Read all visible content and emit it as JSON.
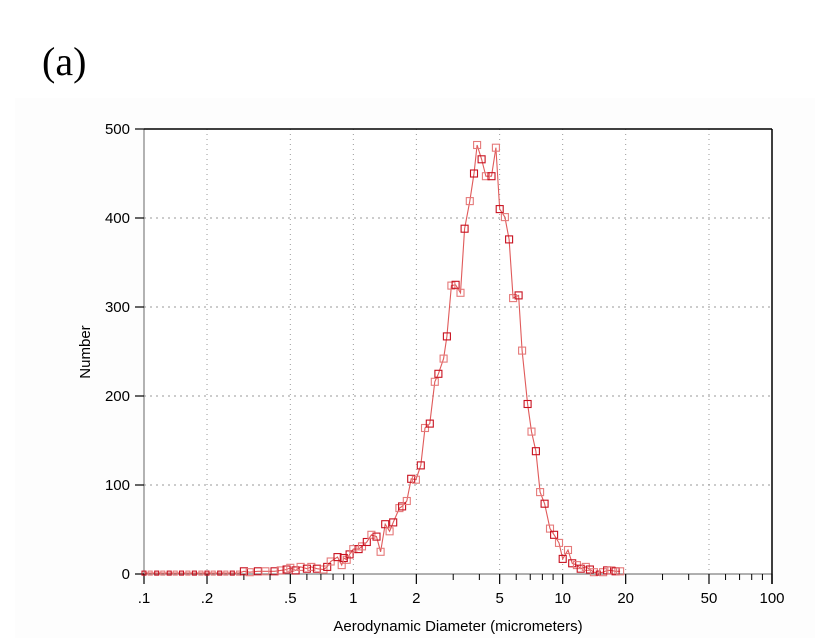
{
  "panel_label": "(a)",
  "colors": {
    "line": "#e05a5a",
    "marker_dark": "#c8101e",
    "marker_light": "#e57a7a",
    "grid": "#999999",
    "axis_left_bottom": "#808080",
    "axis_top_right": "#000000"
  },
  "chart_data": {
    "type": "line",
    "title": "",
    "xlabel": "Aerodynamic Diameter (micrometers)",
    "ylabel": "Number",
    "xscale": "log",
    "xlim": [
      0.1,
      100
    ],
    "ylim": [
      0,
      500
    ],
    "x_ticks": [
      {
        "value": 0.1,
        "label": ".1"
      },
      {
        "value": 0.2,
        "label": ".2"
      },
      {
        "value": 0.5,
        "label": ".5"
      },
      {
        "value": 1,
        "label": "1"
      },
      {
        "value": 2,
        "label": "2"
      },
      {
        "value": 5,
        "label": "5"
      },
      {
        "value": 10,
        "label": "10"
      },
      {
        "value": 20,
        "label": "20"
      },
      {
        "value": 50,
        "label": "50"
      },
      {
        "value": 100,
        "label": "100"
      }
    ],
    "y_ticks": [
      {
        "value": 0,
        "label": "0"
      },
      {
        "value": 100,
        "label": "100"
      },
      {
        "value": 200,
        "label": "200"
      },
      {
        "value": 300,
        "label": "300"
      },
      {
        "value": 400,
        "label": "400"
      },
      {
        "value": 500,
        "label": "500"
      }
    ],
    "grid": true,
    "legend": null,
    "series": [
      {
        "name": "Number",
        "x": [
          0.1,
          0.107,
          0.115,
          0.123,
          0.132,
          0.141,
          0.151,
          0.162,
          0.174,
          0.187,
          0.2,
          0.214,
          0.23,
          0.246,
          0.264,
          0.283,
          0.3,
          0.32,
          0.35,
          0.38,
          0.42,
          0.45,
          0.48,
          0.5,
          0.53,
          0.56,
          0.6,
          0.63,
          0.67,
          0.72,
          0.75,
          0.78,
          0.84,
          0.88,
          0.9,
          0.93,
          0.96,
          1.0,
          1.06,
          1.1,
          1.16,
          1.22,
          1.29,
          1.35,
          1.42,
          1.49,
          1.55,
          1.66,
          1.71,
          1.8,
          1.89,
          1.99,
          2.1,
          2.2,
          2.32,
          2.45,
          2.55,
          2.7,
          2.8,
          2.94,
          3.08,
          3.25,
          3.4,
          3.6,
          3.77,
          3.9,
          4.1,
          4.3,
          4.57,
          4.8,
          5.0,
          5.3,
          5.55,
          5.8,
          6.16,
          6.4,
          6.8,
          7.1,
          7.45,
          7.8,
          8.2,
          8.7,
          9.1,
          9.6,
          10.0,
          10.6,
          11.1,
          11.7,
          12.2,
          12.9,
          13.5,
          14.1,
          14.8,
          15.6,
          16.3,
          17.1,
          17.9,
          18.8
        ],
        "values": [
          1,
          1,
          1,
          1,
          1,
          1,
          1,
          1,
          1,
          1,
          1,
          1,
          1,
          1,
          1,
          1,
          3,
          2,
          3,
          3,
          3,
          4,
          5,
          7,
          4,
          8,
          6,
          8,
          6,
          5,
          8,
          14,
          19,
          10,
          18,
          16,
          22,
          28,
          28,
          31,
          36,
          44,
          42,
          25,
          56,
          48,
          58,
          74,
          76,
          82,
          107,
          106,
          122,
          164,
          169,
          216,
          225,
          242,
          267,
          324,
          325,
          316,
          388,
          419,
          450,
          482,
          466,
          447,
          447,
          479,
          410,
          401,
          376,
          310,
          313,
          251,
          191,
          160,
          138,
          92,
          79,
          51,
          44,
          35,
          17,
          27,
          12,
          10,
          6,
          8,
          5,
          2,
          1,
          2,
          4,
          4,
          3,
          3
        ]
      }
    ]
  }
}
